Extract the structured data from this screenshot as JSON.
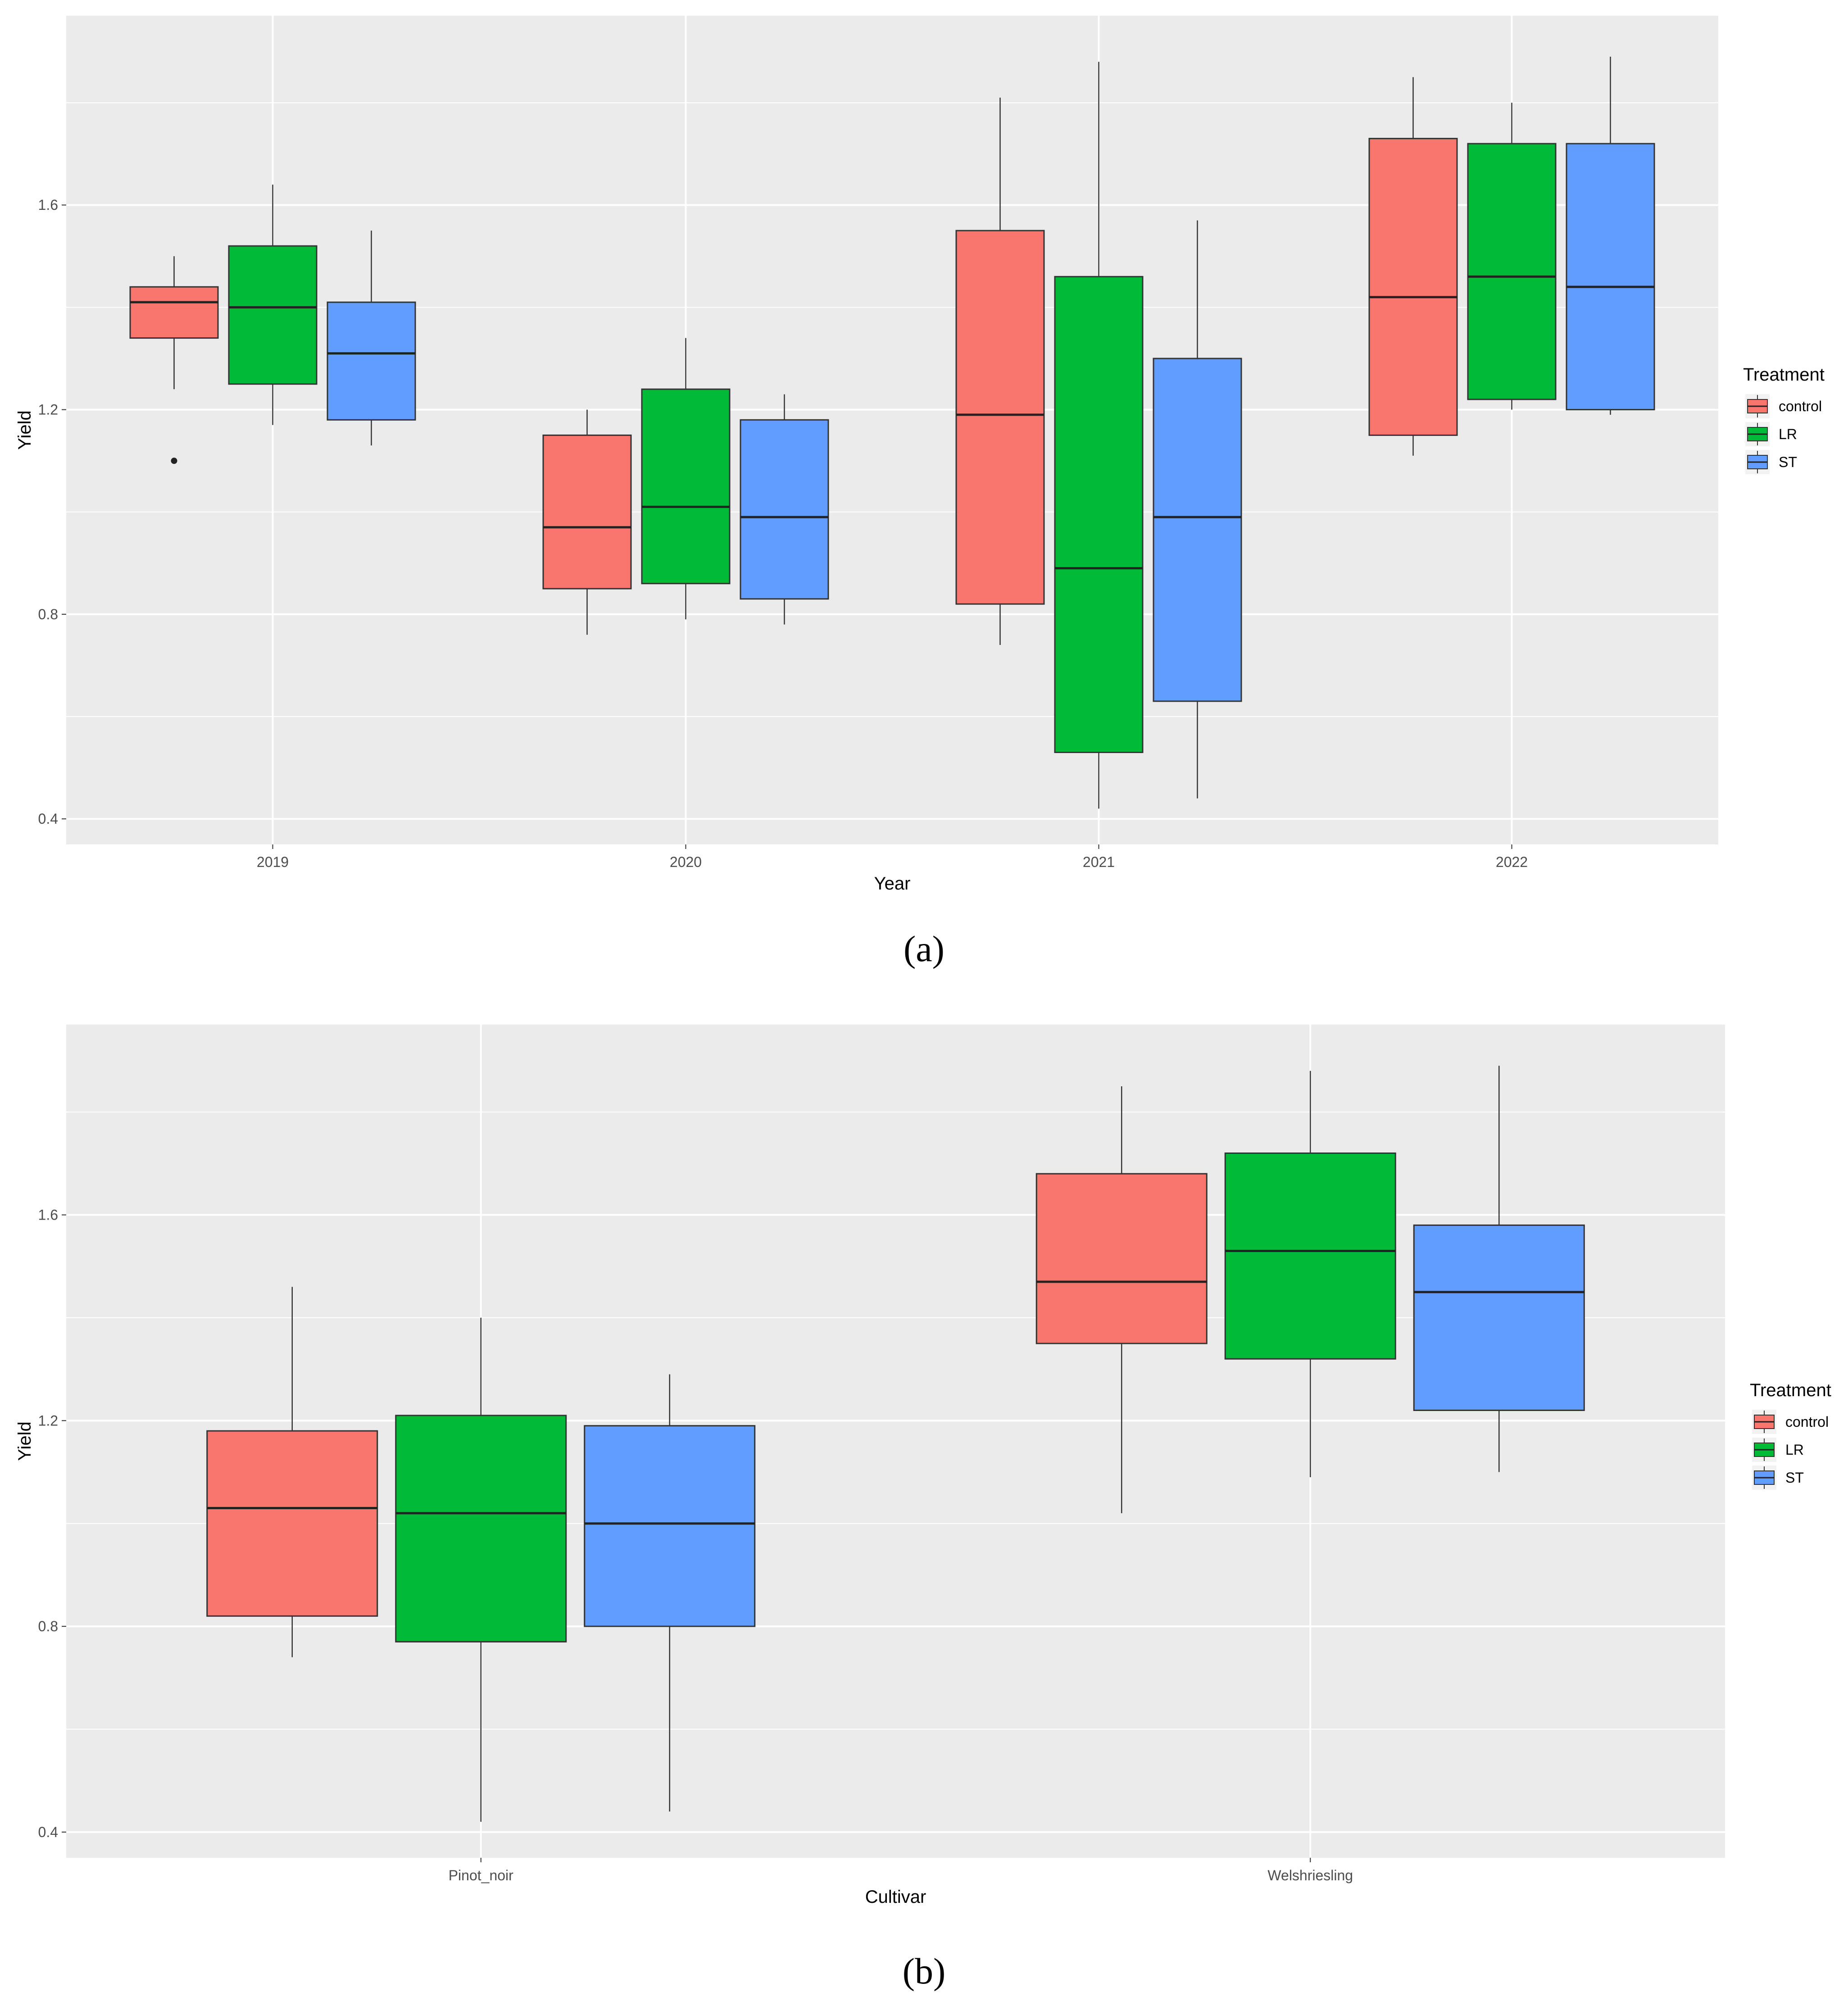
{
  "panels": [
    {
      "label": "(a)",
      "legend_title": "Treatment"
    },
    {
      "label": "(b)",
      "legend_title": "Treatment"
    }
  ],
  "colors": {
    "control": "#F8766D",
    "LR": "#00BA38",
    "ST": "#619CFF",
    "panel_bg": "#EBEBEB",
    "grid": "#FFFFFF"
  },
  "chart_data": [
    {
      "type": "boxplot",
      "xlabel": "Year",
      "ylabel": "Yield",
      "ylim": [
        0.35,
        1.97
      ],
      "yticks": [
        "0.4",
        "0.8",
        "1.2",
        "1.6"
      ],
      "categories": [
        "2019",
        "2020",
        "2021",
        "2022"
      ],
      "legend": "right",
      "series": [
        {
          "name": "control",
          "boxes": [
            {
              "min": 1.24,
              "q1": 1.34,
              "median": 1.41,
              "q3": 1.44,
              "max": 1.5,
              "outliers": [
                1.1
              ]
            },
            {
              "min": 0.76,
              "q1": 0.85,
              "median": 0.97,
              "q3": 1.15,
              "max": 1.2,
              "outliers": []
            },
            {
              "min": 0.74,
              "q1": 0.82,
              "median": 1.19,
              "q3": 1.55,
              "max": 1.81,
              "outliers": []
            },
            {
              "min": 1.11,
              "q1": 1.15,
              "median": 1.42,
              "q3": 1.73,
              "max": 1.85,
              "outliers": []
            }
          ]
        },
        {
          "name": "LR",
          "boxes": [
            {
              "min": 1.17,
              "q1": 1.25,
              "median": 1.4,
              "q3": 1.52,
              "max": 1.64,
              "outliers": []
            },
            {
              "min": 0.79,
              "q1": 0.86,
              "median": 1.01,
              "q3": 1.24,
              "max": 1.34,
              "outliers": []
            },
            {
              "min": 0.42,
              "q1": 0.53,
              "median": 0.89,
              "q3": 1.46,
              "max": 1.88,
              "outliers": []
            },
            {
              "min": 1.2,
              "q1": 1.22,
              "median": 1.46,
              "q3": 1.72,
              "max": 1.8,
              "outliers": []
            }
          ]
        },
        {
          "name": "ST",
          "boxes": [
            {
              "min": 1.13,
              "q1": 1.18,
              "median": 1.31,
              "q3": 1.41,
              "max": 1.55,
              "outliers": []
            },
            {
              "min": 0.78,
              "q1": 0.83,
              "median": 0.99,
              "q3": 1.18,
              "max": 1.23,
              "outliers": []
            },
            {
              "min": 0.44,
              "q1": 0.63,
              "median": 0.99,
              "q3": 1.3,
              "max": 1.57,
              "outliers": []
            },
            {
              "min": 1.19,
              "q1": 1.2,
              "median": 1.44,
              "q3": 1.72,
              "max": 1.89,
              "outliers": []
            }
          ]
        }
      ]
    },
    {
      "type": "boxplot",
      "xlabel": "Cultivar",
      "ylabel": "Yield",
      "ylim": [
        0.35,
        1.97
      ],
      "yticks": [
        "0.4",
        "0.8",
        "1.2",
        "1.6"
      ],
      "categories": [
        "Pinot_noir",
        "Welshriesling"
      ],
      "legend": "right",
      "series": [
        {
          "name": "control",
          "boxes": [
            {
              "min": 0.74,
              "q1": 0.82,
              "median": 1.03,
              "q3": 1.18,
              "max": 1.46,
              "outliers": []
            },
            {
              "min": 1.02,
              "q1": 1.35,
              "median": 1.47,
              "q3": 1.68,
              "max": 1.85,
              "outliers": []
            }
          ]
        },
        {
          "name": "LR",
          "boxes": [
            {
              "min": 0.42,
              "q1": 0.77,
              "median": 1.02,
              "q3": 1.21,
              "max": 1.4,
              "outliers": []
            },
            {
              "min": 1.09,
              "q1": 1.32,
              "median": 1.53,
              "q3": 1.72,
              "max": 1.88,
              "outliers": []
            }
          ]
        },
        {
          "name": "ST",
          "boxes": [
            {
              "min": 0.44,
              "q1": 0.8,
              "median": 1.0,
              "q3": 1.19,
              "max": 1.29,
              "outliers": []
            },
            {
              "min": 1.1,
              "q1": 1.22,
              "median": 1.45,
              "q3": 1.58,
              "max": 1.89,
              "outliers": []
            }
          ]
        }
      ]
    }
  ]
}
